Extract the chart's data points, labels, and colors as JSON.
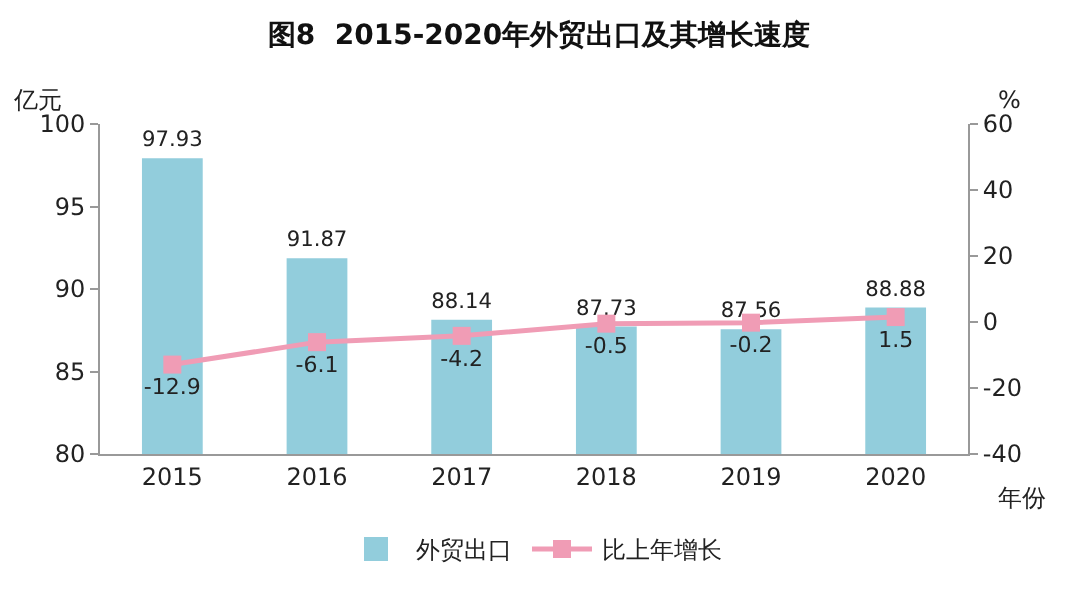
{
  "chart_data": {
    "type": "bar",
    "title": "图8  2015-2020年外贸出口及其增长速度",
    "xlabel": "年份",
    "ylabel": "亿元",
    "y2label": "%",
    "categories": [
      "2015",
      "2016",
      "2017",
      "2018",
      "2019",
      "2020"
    ],
    "series": [
      {
        "name": "外贸出口",
        "color": "#92cddc",
        "values": [
          97.93,
          91.87,
          88.14,
          87.73,
          87.56,
          88.88
        ]
      },
      {
        "name": "比上年增长",
        "type": "line",
        "axis": "y2",
        "color": "#f09cb5",
        "marker": "square",
        "values": [
          -12.9,
          -6.1,
          -4.2,
          -0.5,
          -0.2,
          1.5
        ]
      }
    ],
    "ylim": [
      80,
      100
    ],
    "yticks": [
      80,
      85,
      90,
      95,
      100
    ],
    "y2lim": [
      -40,
      60
    ],
    "y2ticks": [
      -40,
      -20,
      0,
      20,
      40,
      60
    ],
    "data_labels": true,
    "legend": "bottom",
    "grid": false
  }
}
